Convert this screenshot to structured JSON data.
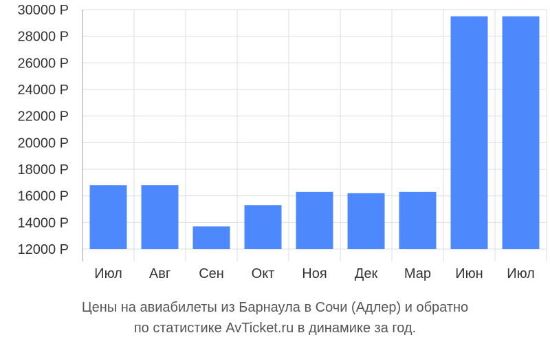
{
  "chart_data": {
    "type": "bar",
    "categories": [
      "Июл",
      "Авг",
      "Сен",
      "Окт",
      "Ноя",
      "Дек",
      "Мар",
      "Июн",
      "Июл"
    ],
    "values": [
      16800,
      16800,
      13700,
      15300,
      16300,
      16200,
      16300,
      29500,
      29500
    ],
    "ylim": [
      12000,
      30000
    ],
    "yticks": [
      12000,
      14000,
      16000,
      18000,
      20000,
      22000,
      24000,
      26000,
      28000,
      30000
    ],
    "currency_suffix": " Р",
    "grid": true,
    "legend": "none",
    "caption_lines": [
      "Цены на авиабилеты из Барнаула в Сочи (Адлер) и обратно",
      "по статистике AvTicket.ru в динамике за год."
    ]
  },
  "colors": {
    "bar": "#4d88fc",
    "grid": "#dddddd",
    "axis": "#999999"
  }
}
